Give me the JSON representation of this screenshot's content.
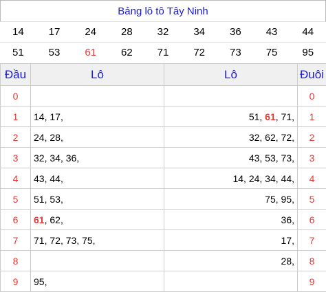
{
  "title": "Bảng lô tô Tây Ninh",
  "numbers_row1": [
    "14",
    "17",
    "24",
    "28",
    "32",
    "34",
    "36",
    "43",
    "44"
  ],
  "numbers_row2": [
    "51",
    "53",
    "61",
    "62",
    "71",
    "72",
    "73",
    "75",
    "95"
  ],
  "highlight_number": "61",
  "highlight_color": "#e53935",
  "accent_color": "#1a1adc",
  "headers": {
    "dau": "Đầu",
    "lo_left": "Lô",
    "lo_right": "Lô",
    "duoi": "Đuôi"
  },
  "rows": [
    {
      "dau": "0",
      "lo_left": [],
      "lo_right": [],
      "duoi": "0"
    },
    {
      "dau": "1",
      "lo_left": [
        "14",
        "17"
      ],
      "lo_right": [
        "51",
        "61",
        "71"
      ],
      "duoi": "1"
    },
    {
      "dau": "2",
      "lo_left": [
        "24",
        "28"
      ],
      "lo_right": [
        "32",
        "62",
        "72"
      ],
      "duoi": "2"
    },
    {
      "dau": "3",
      "lo_left": [
        "32",
        "34",
        "36"
      ],
      "lo_right": [
        "43",
        "53",
        "73"
      ],
      "duoi": "3"
    },
    {
      "dau": "4",
      "lo_left": [
        "43",
        "44"
      ],
      "lo_right": [
        "14",
        "24",
        "34",
        "44"
      ],
      "duoi": "4"
    },
    {
      "dau": "5",
      "lo_left": [
        "51",
        "53"
      ],
      "lo_right": [
        "75",
        "95"
      ],
      "duoi": "5"
    },
    {
      "dau": "6",
      "lo_left": [
        "61",
        "62"
      ],
      "lo_right": [
        "36"
      ],
      "duoi": "6"
    },
    {
      "dau": "7",
      "lo_left": [
        "71",
        "72",
        "73",
        "75"
      ],
      "lo_right": [
        "17"
      ],
      "duoi": "7"
    },
    {
      "dau": "8",
      "lo_left": [],
      "lo_right": [
        "28"
      ],
      "duoi": "8"
    },
    {
      "dau": "9",
      "lo_left": [
        "95"
      ],
      "lo_right": [],
      "duoi": "9"
    }
  ]
}
